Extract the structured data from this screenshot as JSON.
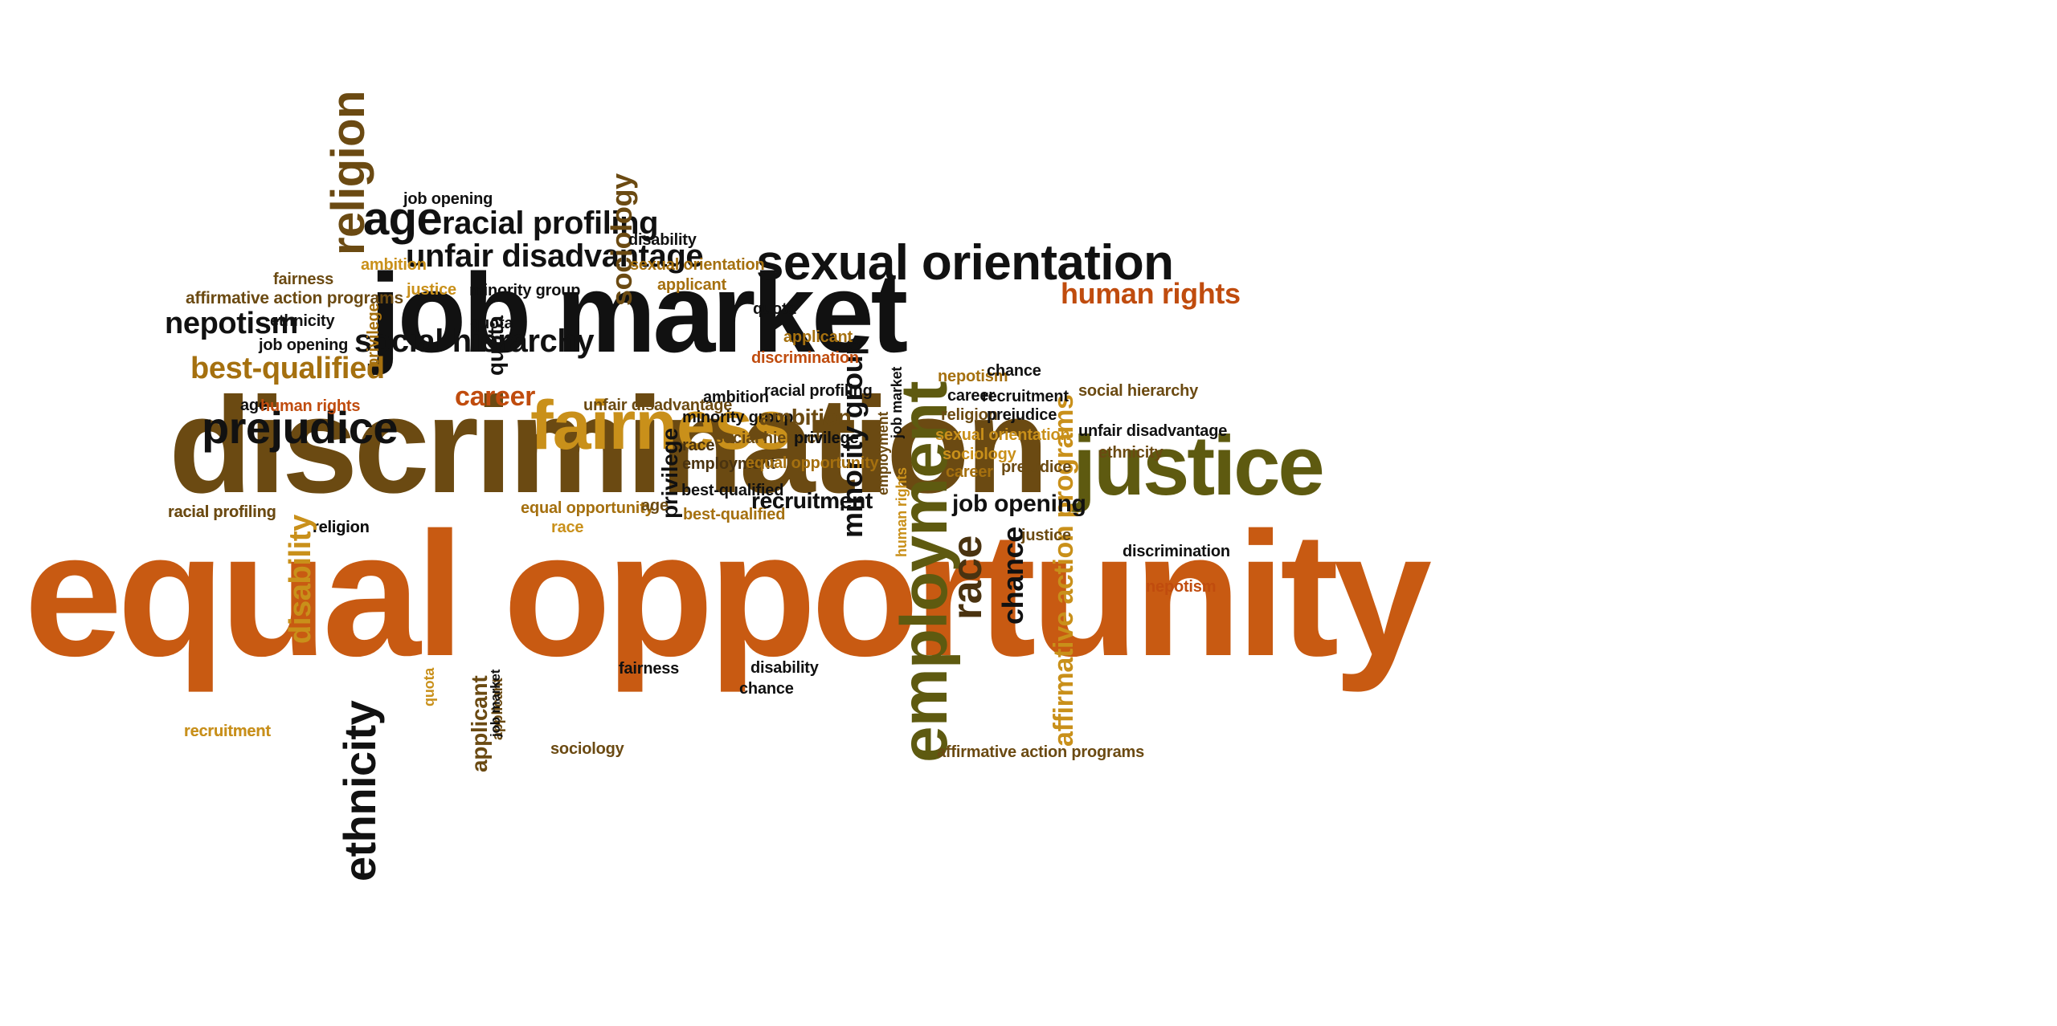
{
  "colors": {
    "black": "#111111",
    "dark_brown": "#4a3310",
    "brown": "#6b4a12",
    "olive": "#5e5a10",
    "orange": "#c85a12",
    "dark_orange": "#c04c0e",
    "gold": "#c9901a",
    "golden_brown": "#a5700f"
  },
  "words": [
    {
      "text": "equal opportunity",
      "c": "orange"
    },
    {
      "text": "discrimination",
      "c": "brown"
    },
    {
      "text": "job market",
      "c": "black"
    },
    {
      "text": "justice",
      "c": "olive"
    },
    {
      "text": "employment",
      "c": "olive"
    },
    {
      "text": "fairness",
      "c": "gold"
    },
    {
      "text": "sexual orientation",
      "c": "black"
    },
    {
      "text": "religion",
      "c": "brown"
    },
    {
      "text": "prejudice",
      "c": "black"
    },
    {
      "text": "ethnicity",
      "c": "black"
    },
    {
      "text": "age",
      "c": "black"
    },
    {
      "text": "racial profiling",
      "c": "black"
    },
    {
      "text": "unfair disadvantage",
      "c": "black"
    },
    {
      "text": "human rights",
      "c": "dark_orange"
    },
    {
      "text": "affirmative action programs",
      "c": "gold"
    },
    {
      "text": "social hierarchy",
      "c": "black"
    },
    {
      "text": "nepotism",
      "c": "black"
    },
    {
      "text": "best-qualified",
      "c": "golden_brown"
    },
    {
      "text": "career",
      "c": "dark_orange"
    },
    {
      "text": "minority group",
      "c": "black"
    },
    {
      "text": "race",
      "c": "dark_brown"
    },
    {
      "text": "chance",
      "c": "black"
    },
    {
      "text": "sociology",
      "c": "brown"
    },
    {
      "text": "disability",
      "c": "gold"
    },
    {
      "text": "quota",
      "c": "black"
    },
    {
      "text": "applicant",
      "c": "brown"
    },
    {
      "text": "privilege",
      "c": "black"
    },
    {
      "text": "recruitment",
      "c": "black"
    },
    {
      "text": "ambition",
      "c": "brown"
    },
    {
      "text": "job opening",
      "c": "black"
    },
    {
      "text": "job opening",
      "c": "black"
    },
    {
      "text": "job opening",
      "c": "black"
    },
    {
      "text": "fairness",
      "c": "brown"
    },
    {
      "text": "affirmative action programs",
      "c": "brown"
    },
    {
      "text": "ethnicity",
      "c": "black"
    },
    {
      "text": "age",
      "c": "black"
    },
    {
      "text": "human rights",
      "c": "dark_orange"
    },
    {
      "text": "racial profiling",
      "c": "brown"
    },
    {
      "text": "religion",
      "c": "black"
    },
    {
      "text": "recruitment",
      "c": "golden_brown"
    },
    {
      "text": "ambition",
      "c": "gold"
    },
    {
      "text": "justice",
      "c": "gold"
    },
    {
      "text": "minority group",
      "c": "black"
    },
    {
      "text": "privilege",
      "c": "golden_brown"
    },
    {
      "text": "quota",
      "c": "black"
    },
    {
      "text": "disability",
      "c": "black"
    },
    {
      "text": "sexual orientation",
      "c": "golden_brown"
    },
    {
      "text": "applicant",
      "c": "golden_brown"
    },
    {
      "text": "quota",
      "c": "black"
    },
    {
      "text": "applicant",
      "c": "golden_brown"
    },
    {
      "text": "discrimination",
      "c": "dark_orange"
    },
    {
      "text": "unfair disadvantage",
      "c": "brown"
    },
    {
      "text": "ambition",
      "c": "black"
    },
    {
      "text": "racial profiling",
      "c": "black"
    },
    {
      "text": "privilege",
      "c": "black"
    },
    {
      "text": "minority group",
      "c": "black"
    },
    {
      "text": "ambition",
      "c": "brown"
    },
    {
      "text": "race",
      "c": "dark_brown"
    },
    {
      "text": "social hierarchy",
      "c": "brown"
    },
    {
      "text": "privilege",
      "c": "black"
    },
    {
      "text": "employment",
      "c": "dark_brown"
    },
    {
      "text": "equal opportunity",
      "c": "golden_brown"
    },
    {
      "text": "best-qualified",
      "c": "black"
    },
    {
      "text": "best-qualified",
      "c": "golden_brown"
    },
    {
      "text": "recruitment",
      "c": "black"
    },
    {
      "text": "equal opportunity",
      "c": "golden_brown"
    },
    {
      "text": "race",
      "c": "gold"
    },
    {
      "text": "age",
      "c": "brown"
    },
    {
      "text": "employment",
      "c": "brown"
    },
    {
      "text": "job market",
      "c": "black"
    },
    {
      "text": "human rights",
      "c": "gold"
    },
    {
      "text": "nepotism",
      "c": "golden_brown"
    },
    {
      "text": "chance",
      "c": "black"
    },
    {
      "text": "career",
      "c": "black"
    },
    {
      "text": "recruitment",
      "c": "black"
    },
    {
      "text": "religion",
      "c": "brown"
    },
    {
      "text": "prejudice",
      "c": "black"
    },
    {
      "text": "sexual orientation",
      "c": "gold"
    },
    {
      "text": "sociology",
      "c": "gold"
    },
    {
      "text": "career",
      "c": "golden_brown"
    },
    {
      "text": "prejudice",
      "c": "brown"
    },
    {
      "text": "justice",
      "c": "brown"
    },
    {
      "text": "social hierarchy",
      "c": "brown"
    },
    {
      "text": "unfair disadvantage",
      "c": "black"
    },
    {
      "text": "ethnicity",
      "c": "brown"
    },
    {
      "text": "discrimination",
      "c": "black"
    },
    {
      "text": "nepotism",
      "c": "dark_orange"
    },
    {
      "text": "affirmative action programs",
      "c": "brown"
    },
    {
      "text": "fairness",
      "c": "black"
    },
    {
      "text": "disability",
      "c": "black"
    },
    {
      "text": "chance",
      "c": "black"
    },
    {
      "text": "sociology",
      "c": "brown"
    },
    {
      "text": "quota",
      "c": "gold"
    },
    {
      "text": "applicant",
      "c": "brown"
    },
    {
      "text": "job market",
      "c": "black"
    },
    {
      "text": "recruitment",
      "c": "gold"
    },
    {
      "text": "racial profiling",
      "c": "brown"
    },
    {
      "text": "religion",
      "c": "black"
    },
    {
      "text": "disability",
      "c": "gold"
    }
  ]
}
